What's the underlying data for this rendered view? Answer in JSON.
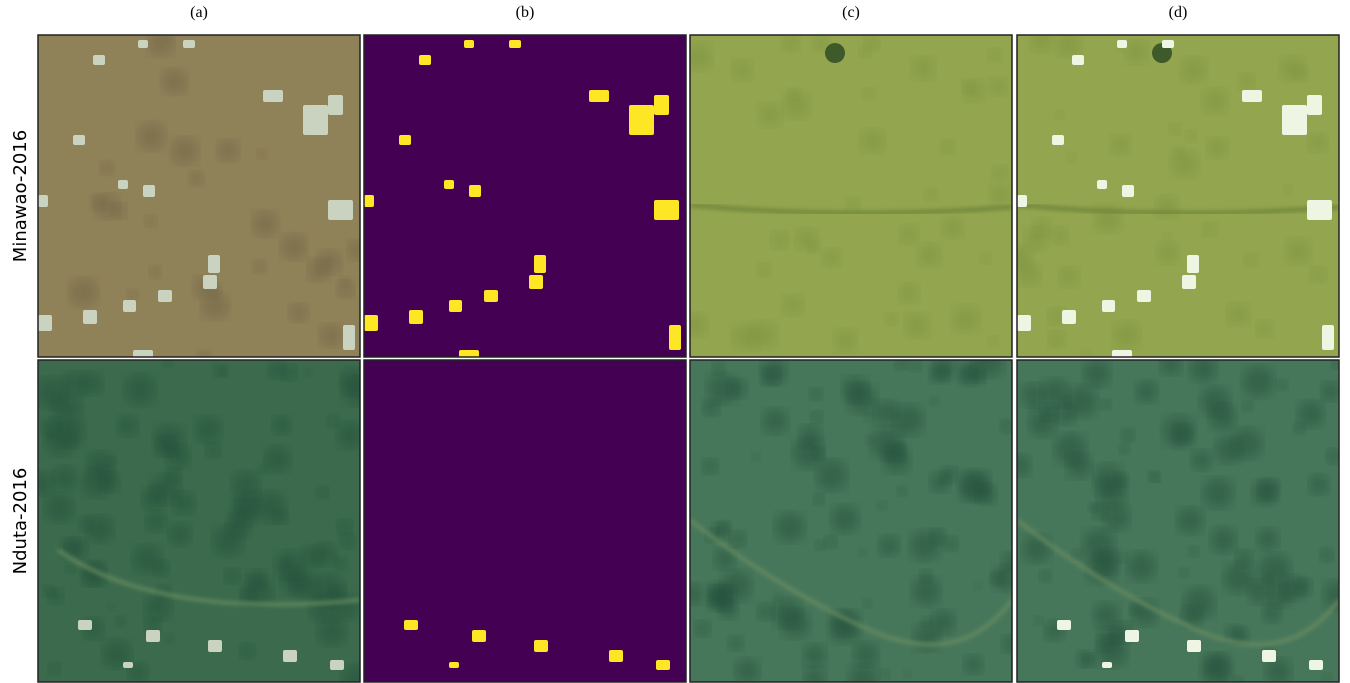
{
  "columns": [
    "(a)",
    "(b)",
    "(c)",
    "(d)"
  ],
  "rows": [
    "Minawao-2016",
    "Nduta-2016"
  ]
}
